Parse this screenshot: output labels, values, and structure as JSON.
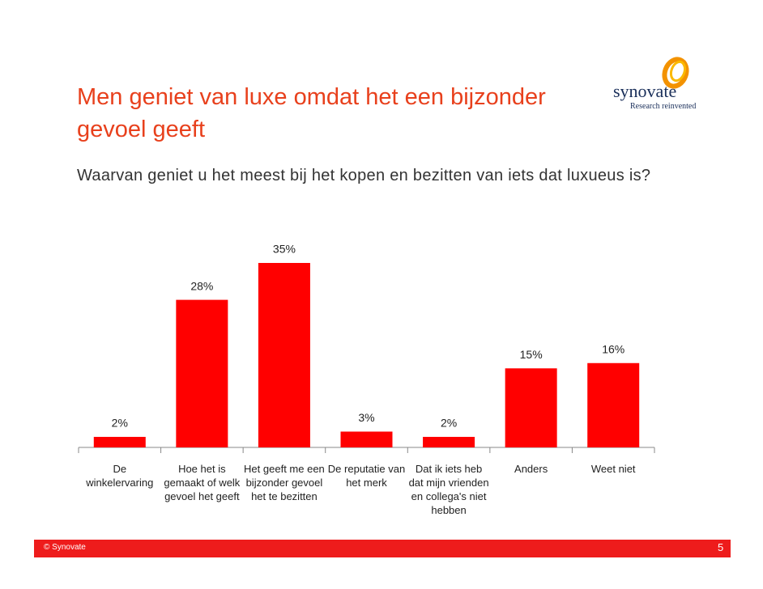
{
  "header": {
    "title": "Men geniet van luxe omdat het een bijzonder gevoel geeft",
    "subtitle": "Waarvan geniet u het meest bij het kopen en bezitten van iets dat luxueus is?",
    "logo": "synovate",
    "tagline": "Research reinvented"
  },
  "chart_data": {
    "type": "bar",
    "categories": [
      "De winkelervaring",
      "Hoe het is gemaakt of welk gevoel het geeft",
      "Het geeft me een bijzonder gevoel het te bezitten",
      "De reputatie van het merk",
      "Dat ik iets heb dat mijn vrienden en collega's niet hebben",
      "Anders",
      "Weet niet"
    ],
    "values": [
      2,
      28,
      35,
      3,
      2,
      15,
      16
    ],
    "value_labels": [
      "2%",
      "28%",
      "35%",
      "3%",
      "2%",
      "15%",
      "16%"
    ],
    "color": "#ff0000"
  },
  "footer": {
    "copyright": "© Synovate",
    "page_number": 5
  }
}
